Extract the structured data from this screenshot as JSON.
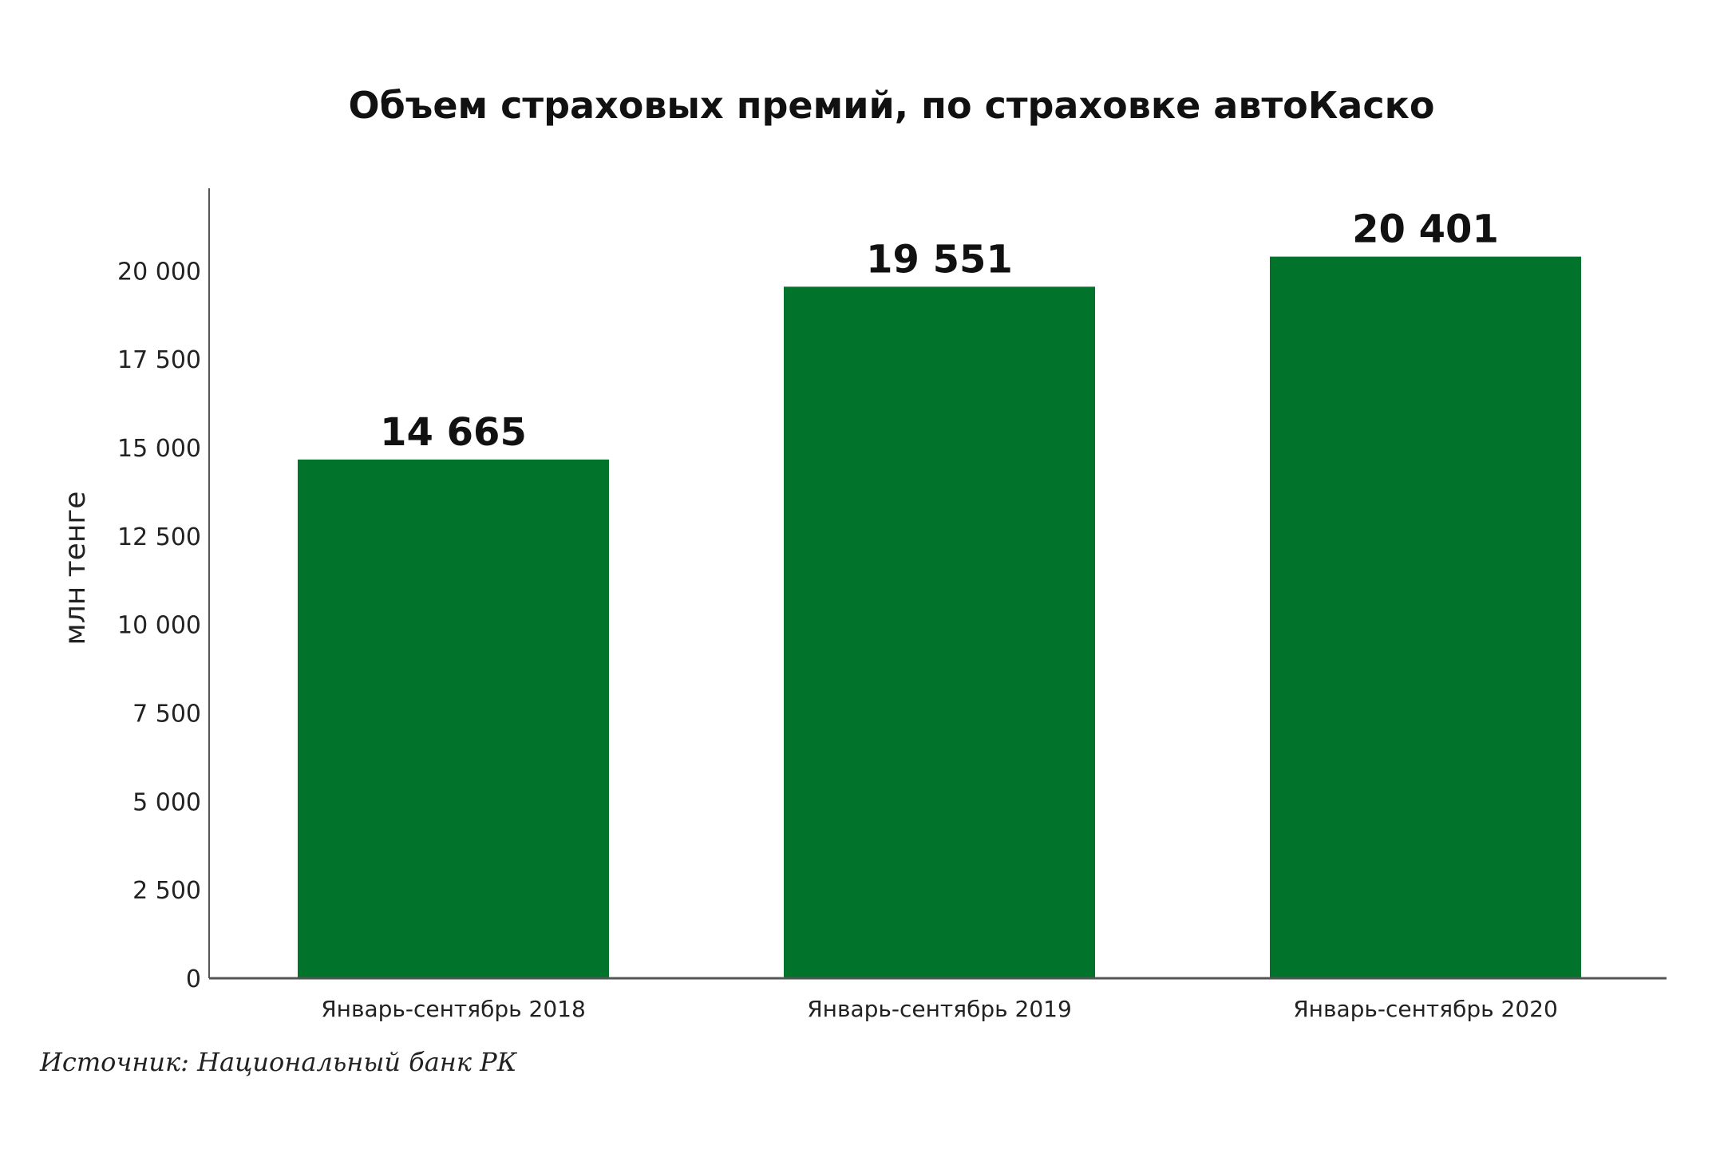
{
  "chart_data": {
    "type": "bar",
    "title": "Объем страховых премий, по страховке автоКаско",
    "ylabel": "млн тенге",
    "xlabel": "",
    "categories": [
      "Январь-сентябрь 2018",
      "Январь-сентябрь 2019",
      "Январь-сентябрь 2020"
    ],
    "values": [
      14665,
      19551,
      20401
    ],
    "data_labels": [
      "14 665",
      "19 551",
      "20 401"
    ],
    "ylim": [
      0,
      22000
    ],
    "yticks": [
      0,
      2500,
      5000,
      7500,
      10000,
      12500,
      15000,
      17500,
      20000
    ],
    "ytick_labels": [
      "0",
      "2 500",
      "5 000",
      "7 500",
      "10 000",
      "12 500",
      "15 000",
      "17 500",
      "20 000"
    ],
    "bar_color": "#01732a",
    "grid": false,
    "legend": "none"
  },
  "source": "Источник:  Национальный банк РК"
}
